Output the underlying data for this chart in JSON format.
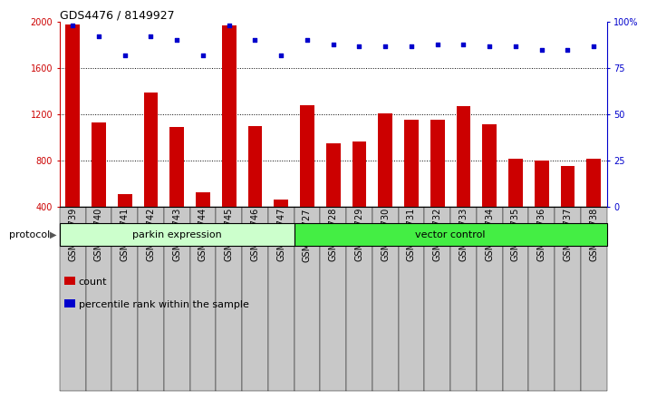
{
  "title": "GDS4476 / 8149927",
  "categories": [
    "GSM729739",
    "GSM729740",
    "GSM729741",
    "GSM729742",
    "GSM729743",
    "GSM729744",
    "GSM729745",
    "GSM729746",
    "GSM729747",
    "GSM729727",
    "GSM729728",
    "GSM729729",
    "GSM729730",
    "GSM729731",
    "GSM729732",
    "GSM729733",
    "GSM729734",
    "GSM729735",
    "GSM729736",
    "GSM729737",
    "GSM729738"
  ],
  "bar_values": [
    1980,
    1130,
    510,
    1390,
    1090,
    520,
    1970,
    1100,
    460,
    1280,
    950,
    960,
    1210,
    1150,
    1150,
    1270,
    1110,
    810,
    800,
    750,
    810
  ],
  "blue_values": [
    98,
    92,
    82,
    92,
    90,
    82,
    98,
    90,
    82,
    90,
    88,
    87,
    87,
    87,
    88,
    88,
    87,
    87,
    85,
    85,
    87
  ],
  "bar_color": "#cc0000",
  "blue_color": "#0000cc",
  "ylim_left": [
    400,
    2000
  ],
  "ylim_right": [
    0,
    100
  ],
  "yticks_left": [
    400,
    800,
    1200,
    1600,
    2000
  ],
  "yticks_right": [
    0,
    25,
    50,
    75,
    100
  ],
  "group1_label": "parkin expression",
  "group2_label": "vector control",
  "group1_count": 9,
  "group2_count": 12,
  "protocol_label": "protocol",
  "legend_count_label": "count",
  "legend_pct_label": "percentile rank within the sample",
  "group1_color": "#ccffcc",
  "group2_color": "#44ee44",
  "xtick_bg_color": "#c8c8c8",
  "plot_bg_color": "#ffffff",
  "title_fontsize": 9,
  "tick_fontsize": 7,
  "bar_width": 0.55
}
